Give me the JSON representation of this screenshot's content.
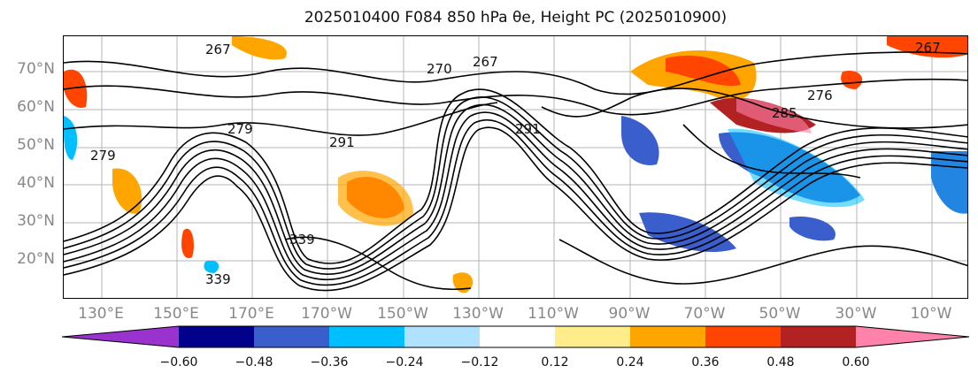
{
  "title": "2025010400 F084 850 hPa θe, Height PC (2025010900)",
  "lat_labels": [
    "70°N",
    "60°N",
    "50°N",
    "40°N",
    "30°N",
    "20°N"
  ],
  "lon_labels": [
    "130°E",
    "150°E",
    "170°E",
    "170°W",
    "150°W",
    "130°W",
    "110°W",
    "90°W",
    "70°W",
    "50°W",
    "30°W",
    "10°W"
  ],
  "contour_labels": [
    "267",
    "270",
    "267",
    "285",
    "291",
    "291",
    "279",
    "276",
    "279",
    "339",
    "339",
    "267"
  ],
  "colorbar": {
    "ticks": [
      "−0.60",
      "−0.48",
      "−0.36",
      "−0.24",
      "−0.12",
      "0.12",
      "0.24",
      "0.36",
      "0.48",
      "0.60"
    ],
    "colors": [
      "#9a32cd",
      "#00008b",
      "#3a5fcd",
      "#00bfff",
      "#b0e2ff",
      "#ffffff",
      "#ffec8b",
      "#ffa500",
      "#ff4500",
      "#b22222",
      "#ff82ab"
    ]
  }
}
